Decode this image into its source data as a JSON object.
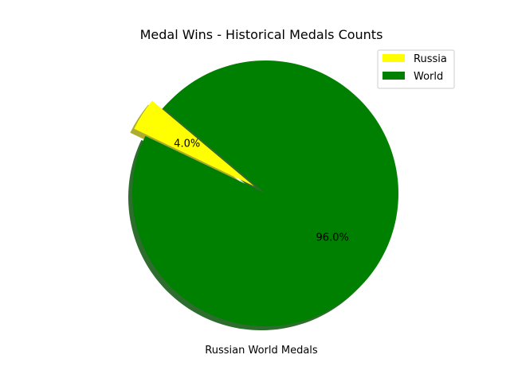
{
  "chart_data": {
    "type": "pie",
    "title": "Medal Wins - Historical Medals Counts",
    "xlabel": "Russian World Medals",
    "slices": [
      {
        "label": "Russia",
        "value": 4.0,
        "pct_label": "4.0%",
        "color": "#ffff00",
        "exploded": true
      },
      {
        "label": "World",
        "value": 96.0,
        "pct_label": "96.0%",
        "color": "#008000",
        "exploded": false
      }
    ],
    "shadow": true,
    "legend_position": "top-right"
  }
}
